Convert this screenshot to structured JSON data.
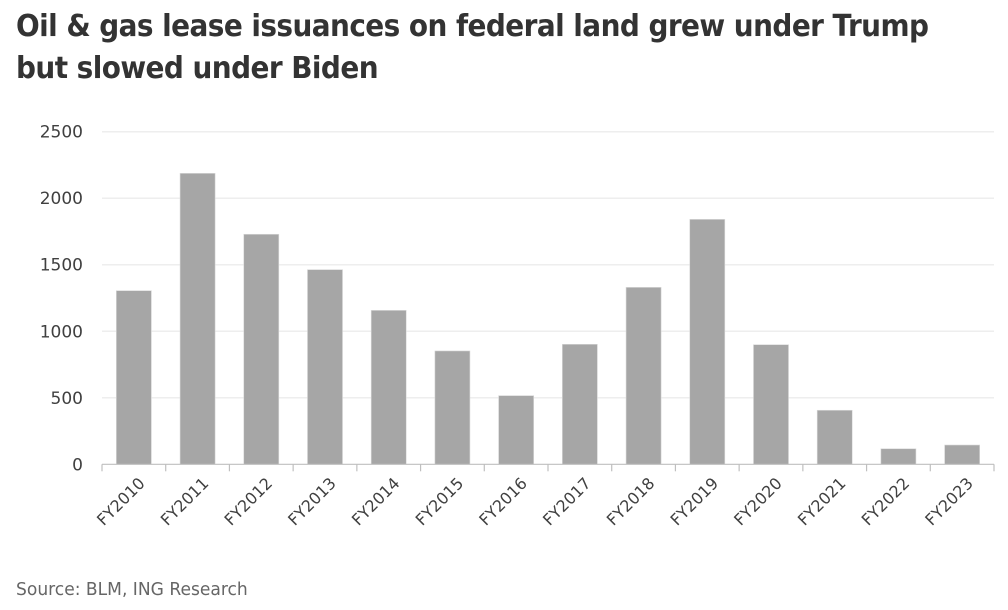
{
  "title": "Oil & gas lease issuances on federal land grew under Trump but slowed under Biden",
  "source": "Source: BLM, ING Research",
  "colors": {
    "bar": "#a6a6a6",
    "gridline": "#eeeeee",
    "axis": "#bfbfbf",
    "text": "#404040",
    "title": "#333333"
  },
  "chart_data": {
    "type": "bar",
    "title": "Oil & gas lease issuances on federal land grew under Trump but slowed under Biden",
    "xlabel": "",
    "ylabel": "",
    "categories": [
      "FY2010",
      "FY2011",
      "FY2012",
      "FY2013",
      "FY2014",
      "FY2015",
      "FY2016",
      "FY2017",
      "FY2018",
      "FY2019",
      "FY2020",
      "FY2021",
      "FY2022",
      "FY2023"
    ],
    "values": [
      1305,
      2187,
      1729,
      1463,
      1157,
      852,
      516,
      902,
      1330,
      1841,
      899,
      406,
      117,
      145
    ],
    "ylim": [
      0,
      2500
    ],
    "yticks": [
      0,
      500,
      1000,
      1500,
      2000,
      2500
    ],
    "ytick_labels": [
      "0",
      "500",
      "1000",
      "1500",
      "2000",
      "2500"
    ],
    "grid": true,
    "legend": "none",
    "source": "Source: BLM, ING Research"
  }
}
